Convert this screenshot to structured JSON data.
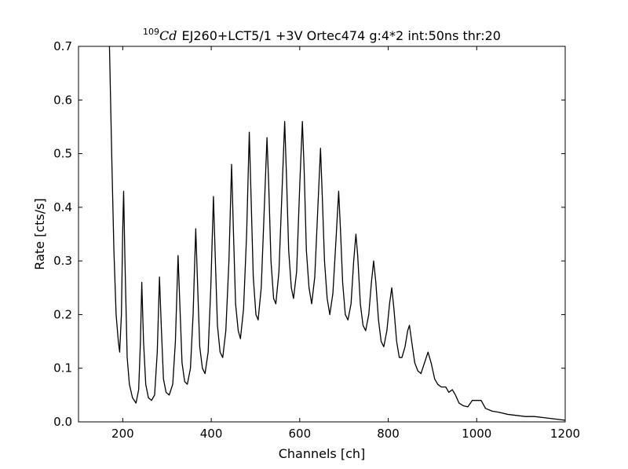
{
  "chart_data": {
    "type": "line",
    "title_superscript": "109",
    "title_isotope": "Cd",
    "title": "EJ260+LCT5/1 +3V Ortec474 g:4*2 int:50ns thr:20",
    "x_label": "Channels [ch]",
    "y_label": "Rate [cts/s]",
    "color": "#000000",
    "xlim": [
      100,
      1200
    ],
    "xticks": [
      200,
      400,
      600,
      800,
      1000,
      1200
    ],
    "ylim": [
      0,
      0.7
    ],
    "yticks": [
      {
        "value": 0,
        "label": "0.0"
      },
      0.1,
      0.2,
      0.3,
      0.4,
      0.5,
      0.6,
      0.7
    ],
    "x": [
      170,
      175,
      180,
      185,
      190,
      193,
      197,
      200,
      202,
      205,
      210,
      215,
      222,
      230,
      236,
      240,
      243,
      247,
      252,
      258,
      265,
      272,
      278,
      283,
      287,
      292,
      298,
      305,
      313,
      319,
      325,
      329,
      334,
      340,
      346,
      353,
      359,
      365,
      369,
      374,
      380,
      386,
      393,
      399,
      405,
      409,
      414,
      420,
      426,
      433,
      440,
      446,
      450,
      455,
      461,
      466,
      473,
      480,
      486,
      490,
      495,
      501,
      506,
      513,
      520,
      526,
      530,
      535,
      541,
      546,
      553,
      560,
      566,
      570,
      575,
      581,
      586,
      593,
      600,
      606,
      610,
      615,
      621,
      627,
      634,
      641,
      647,
      651,
      656,
      662,
      668,
      675,
      682,
      688,
      692,
      697,
      703,
      709,
      716,
      722,
      727,
      731,
      737,
      743,
      749,
      756,
      762,
      767,
      772,
      778,
      784,
      790,
      797,
      803,
      808,
      813,
      819,
      825,
      831,
      838,
      844,
      848,
      853,
      860,
      867,
      874,
      882,
      890,
      897,
      905,
      912,
      920,
      930,
      937,
      945,
      952,
      960,
      970,
      980,
      990,
      1000,
      1010,
      1020,
      1035,
      1050,
      1070,
      1090,
      1110,
      1130,
      1150,
      1170,
      1190,
      1200
    ],
    "values": [
      0.7,
      0.5,
      0.32,
      0.2,
      0.15,
      0.13,
      0.2,
      0.36,
      0.43,
      0.3,
      0.12,
      0.07,
      0.045,
      0.035,
      0.06,
      0.15,
      0.26,
      0.15,
      0.07,
      0.045,
      0.04,
      0.05,
      0.13,
      0.27,
      0.18,
      0.08,
      0.055,
      0.05,
      0.07,
      0.15,
      0.31,
      0.22,
      0.11,
      0.075,
      0.07,
      0.1,
      0.2,
      0.36,
      0.26,
      0.14,
      0.1,
      0.09,
      0.13,
      0.25,
      0.42,
      0.31,
      0.18,
      0.13,
      0.12,
      0.17,
      0.3,
      0.48,
      0.36,
      0.22,
      0.17,
      0.155,
      0.21,
      0.35,
      0.54,
      0.42,
      0.27,
      0.2,
      0.19,
      0.25,
      0.4,
      0.53,
      0.44,
      0.3,
      0.23,
      0.22,
      0.28,
      0.43,
      0.56,
      0.46,
      0.32,
      0.25,
      0.23,
      0.28,
      0.44,
      0.56,
      0.47,
      0.32,
      0.25,
      0.22,
      0.27,
      0.4,
      0.51,
      0.42,
      0.3,
      0.23,
      0.2,
      0.24,
      0.34,
      0.43,
      0.36,
      0.26,
      0.2,
      0.19,
      0.22,
      0.3,
      0.35,
      0.31,
      0.22,
      0.18,
      0.17,
      0.2,
      0.26,
      0.3,
      0.26,
      0.19,
      0.15,
      0.14,
      0.17,
      0.22,
      0.25,
      0.21,
      0.15,
      0.12,
      0.12,
      0.14,
      0.17,
      0.18,
      0.15,
      0.11,
      0.095,
      0.09,
      0.11,
      0.13,
      0.11,
      0.08,
      0.07,
      0.065,
      0.065,
      0.055,
      0.06,
      0.05,
      0.035,
      0.03,
      0.028,
      0.04,
      0.04,
      0.04,
      0.025,
      0.02,
      0.018,
      0.014,
      0.012,
      0.01,
      0.01,
      0.008,
      0.006,
      0.004,
      0.003
    ]
  }
}
